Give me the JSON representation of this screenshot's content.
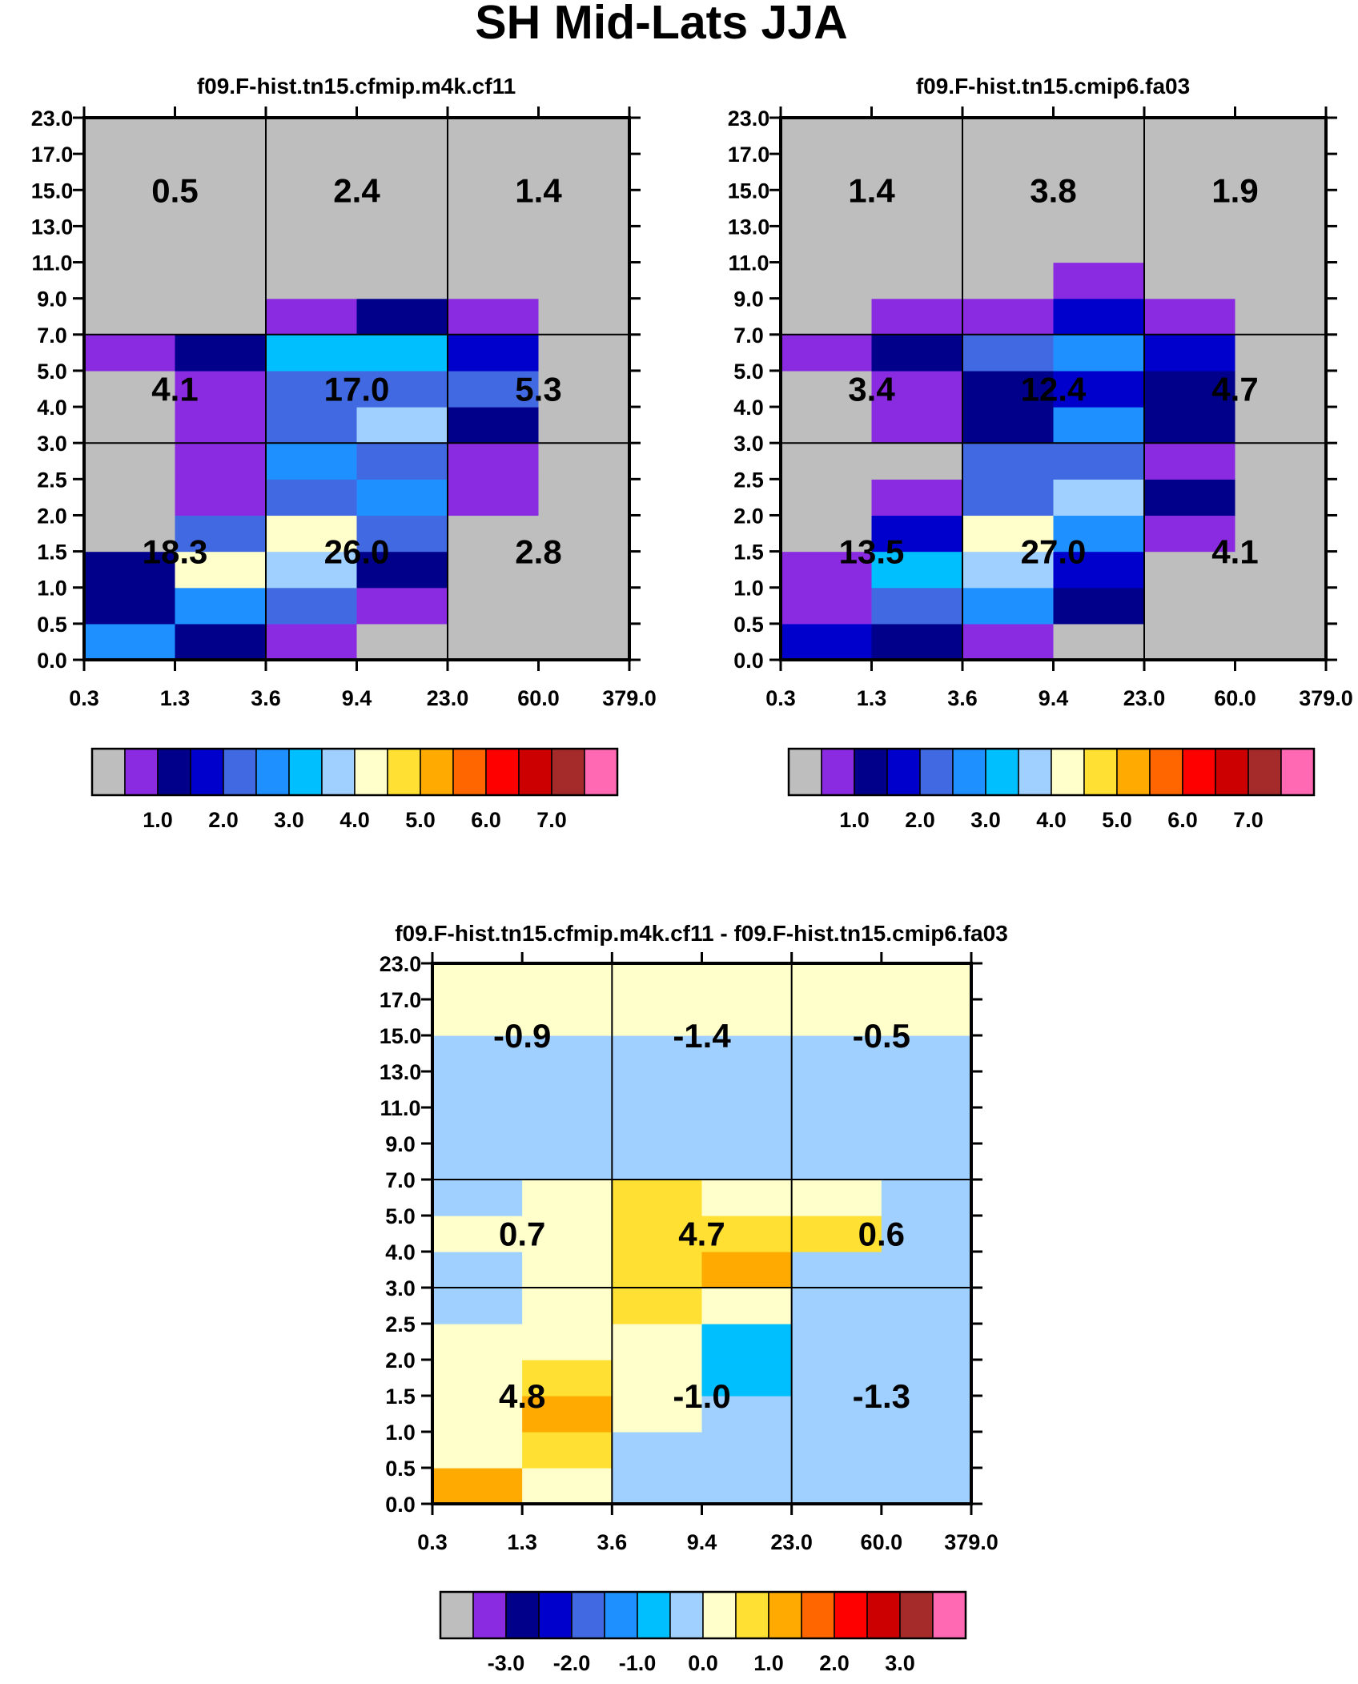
{
  "page_title": "SH Mid-Lats JJA",
  "colors": {
    "grey": "#bebebe",
    "purple": "#8a2be2",
    "navy": "#00008b",
    "blue": "#0000cd",
    "royal": "#4169e1",
    "dodger": "#1e90ff",
    "sky": "#00bfff",
    "light": "#a0d0ff",
    "cream": "#ffffcc",
    "gold": "#ffe033",
    "amber": "#ffaa00",
    "orange": "#ff6600",
    "red": "#ff0000",
    "crimson": "#cc0000",
    "maroon": "#a52a2a",
    "pink": "#ff69b4"
  },
  "colorbar_swatches": [
    "grey",
    "purple",
    "navy",
    "blue",
    "royal",
    "dodger",
    "sky",
    "light",
    "cream",
    "gold",
    "amber",
    "orange",
    "red",
    "crimson",
    "maroon",
    "pink"
  ],
  "chart_data": [
    {
      "type": "heatmap",
      "title": "f09.F-hist.tn15.cfmip.m4k.cf11",
      "x_ticks": [
        "0.3",
        "1.3",
        "3.6",
        "9.4",
        "23.0",
        "60.0",
        "379.0"
      ],
      "y_ticks": [
        "0.0",
        "0.5",
        "1.0",
        "1.5",
        "2.0",
        "2.5",
        "3.0",
        "4.0",
        "5.0",
        "7.0",
        "9.0",
        "11.0",
        "13.0",
        "15.0",
        "17.0",
        "23.0"
      ],
      "cells": [
        [
          "dodger",
          "navy",
          "purple",
          "grey",
          "grey",
          "grey"
        ],
        [
          "navy",
          "dodger",
          "royal",
          "purple",
          "grey",
          "grey"
        ],
        [
          "navy",
          "cream",
          "light",
          "navy",
          "grey",
          "grey"
        ],
        [
          "grey",
          "royal",
          "cream",
          "royal",
          "grey",
          "grey"
        ],
        [
          "grey",
          "purple",
          "royal",
          "dodger",
          "purple",
          "grey"
        ],
        [
          "grey",
          "purple",
          "dodger",
          "royal",
          "purple",
          "grey"
        ],
        [
          "grey",
          "purple",
          "royal",
          "light",
          "navy",
          "grey"
        ],
        [
          "grey",
          "purple",
          "royal",
          "royal",
          "royal",
          "grey"
        ],
        [
          "purple",
          "navy",
          "sky",
          "sky",
          "blue",
          "grey"
        ],
        [
          "grey",
          "grey",
          "purple",
          "navy",
          "purple",
          "grey"
        ],
        [
          "grey",
          "grey",
          "grey",
          "grey",
          "grey",
          "grey"
        ],
        [
          "grey",
          "grey",
          "grey",
          "grey",
          "grey",
          "grey"
        ],
        [
          "grey",
          "grey",
          "grey",
          "grey",
          "grey",
          "grey"
        ],
        [
          "grey",
          "grey",
          "grey",
          "grey",
          "grey",
          "grey"
        ],
        [
          "grey",
          "grey",
          "grey",
          "grey",
          "grey",
          "grey"
        ]
      ],
      "values": {
        "top": [
          "0.5",
          "2.4",
          "1.4"
        ],
        "middle": [
          "4.1",
          "17.0",
          "5.3"
        ],
        "bottom": [
          "18.3",
          "26.0",
          "2.8"
        ]
      },
      "colorbar_labels": [
        "1.0",
        "2.0",
        "3.0",
        "4.0",
        "5.0",
        "6.0",
        "7.0"
      ]
    },
    {
      "type": "heatmap",
      "title": "f09.F-hist.tn15.cmip6.fa03",
      "x_ticks": [
        "0.3",
        "1.3",
        "3.6",
        "9.4",
        "23.0",
        "60.0",
        "379.0"
      ],
      "y_ticks": [
        "0.0",
        "0.5",
        "1.0",
        "1.5",
        "2.0",
        "2.5",
        "3.0",
        "4.0",
        "5.0",
        "7.0",
        "9.0",
        "11.0",
        "13.0",
        "15.0",
        "17.0",
        "23.0"
      ],
      "cells": [
        [
          "blue",
          "navy",
          "purple",
          "grey",
          "grey",
          "grey"
        ],
        [
          "purple",
          "royal",
          "dodger",
          "navy",
          "grey",
          "grey"
        ],
        [
          "purple",
          "sky",
          "light",
          "blue",
          "grey",
          "grey"
        ],
        [
          "grey",
          "blue",
          "cream",
          "dodger",
          "purple",
          "grey"
        ],
        [
          "grey",
          "purple",
          "royal",
          "light",
          "navy",
          "grey"
        ],
        [
          "grey",
          "grey",
          "royal",
          "royal",
          "purple",
          "grey"
        ],
        [
          "grey",
          "purple",
          "navy",
          "dodger",
          "navy",
          "grey"
        ],
        [
          "grey",
          "purple",
          "navy",
          "blue",
          "navy",
          "grey"
        ],
        [
          "purple",
          "navy",
          "royal",
          "dodger",
          "blue",
          "grey"
        ],
        [
          "grey",
          "purple",
          "purple",
          "blue",
          "purple",
          "grey"
        ],
        [
          "grey",
          "grey",
          "grey",
          "purple",
          "grey",
          "grey"
        ],
        [
          "grey",
          "grey",
          "grey",
          "grey",
          "grey",
          "grey"
        ],
        [
          "grey",
          "grey",
          "grey",
          "grey",
          "grey",
          "grey"
        ],
        [
          "grey",
          "grey",
          "grey",
          "grey",
          "grey",
          "grey"
        ],
        [
          "grey",
          "grey",
          "grey",
          "grey",
          "grey",
          "grey"
        ]
      ],
      "values": {
        "top": [
          "1.4",
          "3.8",
          "1.9"
        ],
        "middle": [
          "3.4",
          "12.4",
          "4.7"
        ],
        "bottom": [
          "13.5",
          "27.0",
          "4.1"
        ]
      },
      "colorbar_labels": [
        "1.0",
        "2.0",
        "3.0",
        "4.0",
        "5.0",
        "6.0",
        "7.0"
      ]
    },
    {
      "type": "heatmap",
      "title": "f09.F-hist.tn15.cfmip.m4k.cf11 - f09.F-hist.tn15.cmip6.fa03",
      "x_ticks": [
        "0.3",
        "1.3",
        "3.6",
        "9.4",
        "23.0",
        "60.0",
        "379.0"
      ],
      "y_ticks": [
        "0.0",
        "0.5",
        "1.0",
        "1.5",
        "2.0",
        "2.5",
        "3.0",
        "4.0",
        "5.0",
        "7.0",
        "9.0",
        "11.0",
        "13.0",
        "15.0",
        "17.0",
        "23.0"
      ],
      "cells": [
        [
          "amber",
          "cream",
          "light",
          "light",
          "light",
          "light"
        ],
        [
          "cream",
          "gold",
          "light",
          "light",
          "light",
          "light"
        ],
        [
          "cream",
          "amber",
          "cream",
          "light",
          "light",
          "light"
        ],
        [
          "cream",
          "gold",
          "cream",
          "sky",
          "light",
          "light"
        ],
        [
          "cream",
          "cream",
          "cream",
          "sky",
          "light",
          "light"
        ],
        [
          "light",
          "cream",
          "gold",
          "cream",
          "light",
          "light"
        ],
        [
          "light",
          "cream",
          "gold",
          "amber",
          "light",
          "light"
        ],
        [
          "cream",
          "cream",
          "gold",
          "gold",
          "gold",
          "light"
        ],
        [
          "light",
          "cream",
          "gold",
          "cream",
          "cream",
          "light"
        ],
        [
          "light",
          "light",
          "light",
          "light",
          "light",
          "light"
        ],
        [
          "light",
          "light",
          "light",
          "light",
          "light",
          "light"
        ],
        [
          "light",
          "light",
          "light",
          "light",
          "light",
          "light"
        ],
        [
          "light",
          "light",
          "light",
          "light",
          "light",
          "light"
        ],
        [
          "cream",
          "cream",
          "cream",
          "cream",
          "cream",
          "cream"
        ],
        [
          "cream",
          "cream",
          "cream",
          "cream",
          "cream",
          "cream"
        ]
      ],
      "values": {
        "top": [
          "-0.9",
          "-1.4",
          "-0.5"
        ],
        "middle": [
          "0.7",
          "4.7",
          "0.6"
        ],
        "bottom": [
          "4.8",
          "-1.0",
          "-1.3"
        ]
      },
      "colorbar_labels": [
        "-3.0",
        "-2.0",
        "-1.0",
        "0.0",
        "1.0",
        "2.0",
        "3.0"
      ]
    }
  ]
}
